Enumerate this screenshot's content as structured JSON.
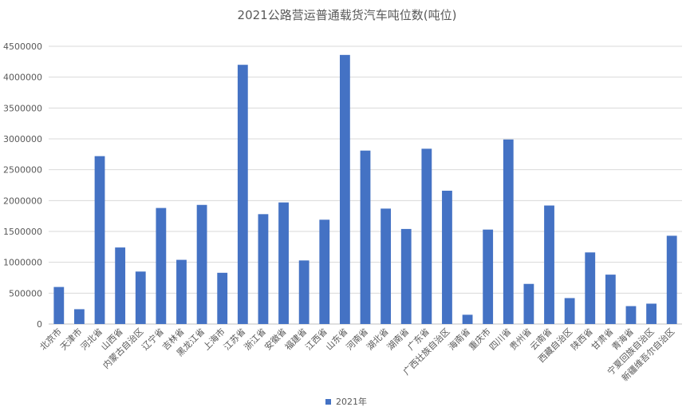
{
  "chart_data": {
    "type": "bar",
    "title": "2021公路营运普通载货汽车吨位数(吨位)",
    "xlabel": "",
    "ylabel": "",
    "ylim": [
      0,
      4500000
    ],
    "y_ticks": [
      "0",
      "500000",
      "1000000",
      "1500000",
      "2000000",
      "2500000",
      "3000000",
      "3500000",
      "4000000",
      "4500000"
    ],
    "grid": true,
    "legend_position": "bottom",
    "bar_color": "#4472C4",
    "categories": [
      "北京市",
      "天津市",
      "河北省",
      "山西省",
      "内蒙古自治区",
      "辽宁省",
      "吉林省",
      "黑龙江省",
      "上海市",
      "江苏省",
      "浙江省",
      "安徽省",
      "福建省",
      "江西省",
      "山东省",
      "河南省",
      "湖北省",
      "湖南省",
      "广东省",
      "广西壮族自治区",
      "海南省",
      "重庆市",
      "四川省",
      "贵州省",
      "云南省",
      "西藏自治区",
      "陕西省",
      "甘肃省",
      "青海省",
      "宁夏回族自治区",
      "新疆维吾尔自治区"
    ],
    "series": [
      {
        "name": "2021年",
        "values": [
          600000,
          240000,
          2720000,
          1240000,
          850000,
          1880000,
          1040000,
          1930000,
          830000,
          4200000,
          1780000,
          1970000,
          1030000,
          1690000,
          4360000,
          2810000,
          1870000,
          1540000,
          2840000,
          2160000,
          150000,
          1530000,
          2990000,
          650000,
          1920000,
          420000,
          1160000,
          800000,
          290000,
          330000,
          1430000
        ]
      }
    ]
  }
}
